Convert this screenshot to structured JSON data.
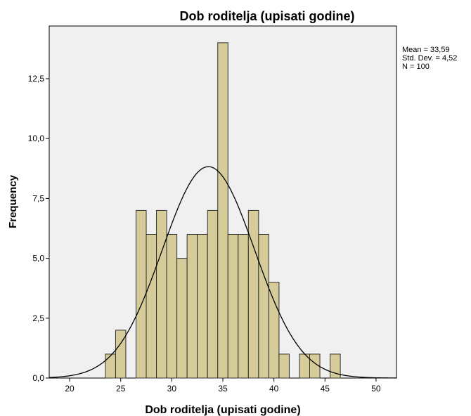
{
  "chart_data": {
    "type": "bar",
    "title": "Dob roditelja (upisati godine)",
    "xlabel": "Dob roditelja (upisati godine)",
    "ylabel": "Frequency",
    "xlim": [
      18,
      52
    ],
    "ylim": [
      0,
      14.7
    ],
    "xticks": [
      20,
      25,
      30,
      35,
      40,
      45,
      50
    ],
    "xtick_labels": [
      "20",
      "25",
      "30",
      "35",
      "40",
      "45",
      "50"
    ],
    "yticks": [
      0,
      2.5,
      5,
      7.5,
      10,
      12.5
    ],
    "ytick_labels": [
      "0,0",
      "2,5",
      "5,0",
      "7,5",
      "10,0",
      "12,5"
    ],
    "bin_width": 1,
    "bins": [
      {
        "x": 24,
        "value": 1
      },
      {
        "x": 25,
        "value": 2
      },
      {
        "x": 27,
        "value": 7
      },
      {
        "x": 28,
        "value": 6
      },
      {
        "x": 29,
        "value": 7
      },
      {
        "x": 30,
        "value": 6
      },
      {
        "x": 31,
        "value": 5
      },
      {
        "x": 32,
        "value": 6
      },
      {
        "x": 33,
        "value": 6
      },
      {
        "x": 34,
        "value": 7
      },
      {
        "x": 35,
        "value": 14
      },
      {
        "x": 36,
        "value": 6
      },
      {
        "x": 37,
        "value": 6
      },
      {
        "x": 38,
        "value": 7
      },
      {
        "x": 39,
        "value": 6
      },
      {
        "x": 40,
        "value": 4
      },
      {
        "x": 41,
        "value": 1
      },
      {
        "x": 43,
        "value": 1
      },
      {
        "x": 44,
        "value": 1
      },
      {
        "x": 46,
        "value": 1
      }
    ],
    "normal_curve": {
      "mean": 33.59,
      "std_dev": 4.52,
      "n": 100
    },
    "stats_text": [
      "Mean = 33,59",
      "Std. Dev. = 4,52",
      "N = 100"
    ],
    "legend_position": "top-right",
    "grid": false,
    "colors": {
      "bar_fill": "#d6cc9a",
      "bar_stroke": "#2f2f2f",
      "plot_bg": "#f0f0f0",
      "curve": "#000000"
    }
  }
}
